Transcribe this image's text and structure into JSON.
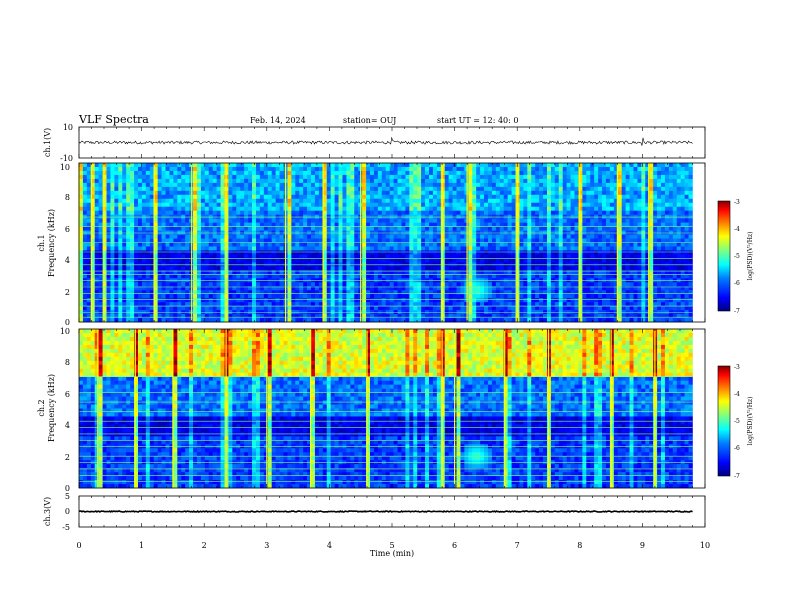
{
  "header": {
    "title": "VLF Spectra",
    "date": "Feb. 14, 2024",
    "station": "station= OUJ",
    "start": "start  UT =   12: 40: 0"
  },
  "colors": {
    "background": "#ffffff",
    "axes": "#000000",
    "waveform": "#000000",
    "colormap": [
      "#00007f",
      "#0000ff",
      "#007fff",
      "#00ffff",
      "#7fff7f",
      "#ffff00",
      "#ff7f00",
      "#ff0000",
      "#7f0000"
    ]
  },
  "chart_data": [
    {
      "type": "line",
      "ylabel": "ch.1(V)",
      "ylim": [
        -10,
        10
      ],
      "yticks": [
        "10",
        "-10"
      ],
      "xlim": [
        0,
        10
      ],
      "level": 0,
      "noise_amplitude": 1.0
    },
    {
      "type": "heatmap",
      "ylabel": "ch.1\nFrequency (kHz)",
      "ylim": [
        0,
        10
      ],
      "yticks": [
        "0",
        "2",
        "4",
        "6",
        "8",
        "10"
      ],
      "xlim": [
        0,
        9.8
      ],
      "colorbar": {
        "label": "log(PSD)(V²/Hz)",
        "range": [
          -7,
          -3
        ],
        "ticks": [
          "-3",
          "-4",
          "-5",
          "-6",
          "-7"
        ]
      },
      "features": {
        "horizontal_lines_khz": [
          0.3,
          0.6,
          1.0,
          1.4,
          1.8,
          2.2,
          2.6,
          3.0,
          3.2,
          3.6,
          4.0,
          4.4,
          5.0,
          5.6,
          6.0,
          6.6
        ],
        "bright_vertical_min": [
          0.0,
          0.2,
          0.4,
          1.2,
          1.8,
          2.35,
          3.3,
          3.9,
          4.5,
          5.8,
          6.2,
          7.0,
          8.0,
          8.6,
          9.1
        ],
        "emission_blob": {
          "t_min": 6.35,
          "f_khz": 2.0
        }
      }
    },
    {
      "type": "heatmap",
      "ylabel": "ch.2\nFrequency (kHz)",
      "ylim": [
        0,
        10
      ],
      "yticks": [
        "0",
        "2",
        "4",
        "6",
        "8",
        "10"
      ],
      "xlim": [
        0,
        9.8
      ],
      "colorbar": {
        "label": "log(PSD)(V²/Hz)",
        "range": [
          -7,
          -3
        ],
        "ticks": [
          "-3",
          "-4",
          "-5",
          "-6",
          "-7"
        ]
      },
      "features": {
        "horizontal_lines_khz": [
          0.4,
          0.8,
          1.2,
          1.6,
          2.0,
          2.6,
          3.0,
          3.4,
          3.8,
          4.2,
          4.8,
          5.4,
          6.0,
          7.0
        ],
        "bright_vertical_min": [
          0.3,
          0.9,
          1.5,
          2.35,
          3.0,
          3.7,
          4.6,
          5.8,
          6.0,
          6.8,
          7.5,
          8.5,
          9.2
        ],
        "emission_blob": {
          "t_min": 6.35,
          "f_khz": 2.0
        }
      }
    },
    {
      "type": "line",
      "ylabel": "ch.3(V)",
      "ylim": [
        -5,
        5
      ],
      "yticks": [
        "5",
        "0",
        "-5"
      ],
      "xlim": [
        0,
        10
      ],
      "level": 0,
      "noise_amplitude": 0.15,
      "xlabel": "Time (min)",
      "xticks": [
        "0",
        "1",
        "2",
        "3",
        "4",
        "5",
        "6",
        "7",
        "8",
        "9",
        "10"
      ]
    }
  ]
}
